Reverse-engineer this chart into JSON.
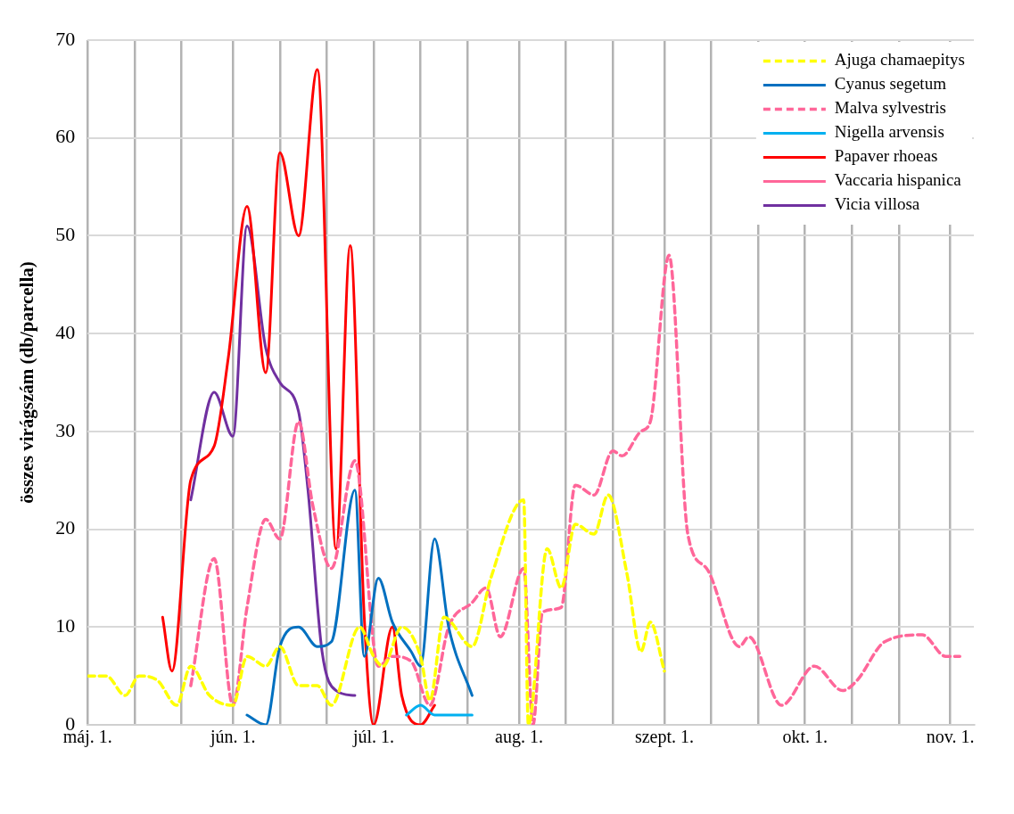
{
  "chart_data": {
    "type": "line",
    "ylabel": "összes virágszám (db/parcella)",
    "xlim": [
      "--05-01",
      "--11-06"
    ],
    "xticks": [
      {
        "value": "--05-01",
        "label": "máj. 1."
      },
      {
        "value": "--05-11",
        "label": null
      },
      {
        "value": "--05-21",
        "label": null
      },
      {
        "value": "--06-01",
        "label": "jún. 1."
      },
      {
        "value": "--06-11",
        "label": null
      },
      {
        "value": "--06-21",
        "label": null
      },
      {
        "value": "--07-01",
        "label": "júl. 1."
      },
      {
        "value": "--07-11",
        "label": null
      },
      {
        "value": "--07-21",
        "label": null
      },
      {
        "value": "--08-01",
        "label": "aug. 1."
      },
      {
        "value": "--08-11",
        "label": null
      },
      {
        "value": "--08-21",
        "label": null
      },
      {
        "value": "--09-01",
        "label": "szept. 1."
      },
      {
        "value": "--09-11",
        "label": null
      },
      {
        "value": "--09-21",
        "label": null
      },
      {
        "value": "--10-01",
        "label": "okt. 1."
      },
      {
        "value": "--10-11",
        "label": null
      },
      {
        "value": "--10-21",
        "label": null
      },
      {
        "value": "--11-01",
        "label": "nov. 1."
      }
    ],
    "ylim": [
      0,
      70
    ],
    "yticks": [
      0,
      10,
      20,
      30,
      40,
      50,
      60,
      70
    ],
    "grid": true,
    "legend": "top right",
    "marker": "none",
    "series": [
      {
        "name": "Ajuga chamaepitys",
        "color": "#ffff00",
        "line_style": "dashed",
        "x": [
          "--05-01",
          "--05-05",
          "--05-09",
          "--05-12",
          "--05-16",
          "--05-20",
          "--05-23",
          "--05-27",
          "--06-01",
          "--06-04",
          "--06-08",
          "--06-11",
          "--06-15",
          "--06-19",
          "--06-22",
          "--06-28",
          "--07-01",
          "--07-03",
          "--07-07",
          "--07-11",
          "--07-13",
          "--07-16",
          "--07-22",
          "--07-26",
          "--08-02",
          "--08-03",
          "--08-07",
          "--08-10",
          "--08-13",
          "--08-17",
          "--08-20",
          "--08-24",
          "--08-27",
          "--08-29",
          "--09-01"
        ],
        "values": [
          5,
          5,
          3,
          5,
          4.5,
          2,
          6,
          3,
          2,
          7,
          6,
          8,
          4,
          4,
          2,
          10,
          7,
          6,
          10,
          7,
          2.5,
          11,
          8,
          15,
          23,
          0,
          18,
          14,
          20.5,
          19.5,
          23.5,
          15.5,
          7.5,
          10.5,
          5.5
        ]
      },
      {
        "name": "Cyanus segetum",
        "color": "#0070c0",
        "line_style": "solid",
        "x": [
          "--06-04",
          "--06-08",
          "--06-11",
          "--06-15",
          "--06-19",
          "--06-22",
          "--06-27",
          "--06-29",
          "--07-02",
          "--07-05",
          "--07-09",
          "--07-11",
          "--07-14",
          "--07-17",
          "--07-22"
        ],
        "values": [
          1,
          0,
          8,
          10,
          8,
          8.5,
          24,
          7,
          15,
          10.5,
          7.5,
          6,
          19,
          10,
          3
        ]
      },
      {
        "name": "Malva sylvestris",
        "color": "#ff6699",
        "line_style": "dashed",
        "x": [
          "--05-23",
          "--05-28",
          "--06-01",
          "--06-04",
          "--06-08",
          "--06-11",
          "--06-15",
          "--06-18",
          "--06-22",
          "--06-27",
          "--07-02",
          "--07-05",
          "--07-09",
          "--07-13",
          "--07-17",
          "--07-22",
          "--07-25",
          "--07-28",
          "--08-02",
          "--08-04",
          "--08-06",
          "--08-10",
          "--08-13",
          "--08-17",
          "--08-21",
          "--08-23",
          "--08-27",
          "--08-29",
          "--09-02",
          "--09-06",
          "--09-10",
          "--09-17",
          "--09-19",
          "--09-26",
          "--10-03",
          "--10-09",
          "--10-12",
          "--10-18",
          "--10-26",
          "--10-31",
          "--11-03"
        ],
        "values": [
          4,
          17,
          2,
          12,
          21,
          19,
          31,
          22.5,
          16,
          27,
          6,
          7,
          6.5,
          2,
          10,
          12.5,
          14,
          9,
          16,
          0,
          11.5,
          12,
          24.5,
          23.5,
          28,
          27.5,
          30,
          31,
          48,
          19.5,
          16,
          8,
          9,
          2,
          6,
          3.5,
          4.5,
          8.5,
          9.2,
          7,
          7
        ]
      },
      {
        "name": "Nigella arvensis",
        "color": "#00b0f0",
        "line_style": "solid",
        "x": [
          "--07-08",
          "--07-11",
          "--07-14",
          "--07-22"
        ],
        "values": [
          1,
          2,
          1,
          1
        ]
      },
      {
        "name": "Papaver rhoeas",
        "color": "#ff0000",
        "line_style": "solid",
        "x": [
          "--05-17",
          "--05-19",
          "--05-23",
          "--05-28",
          "--05-31",
          "--06-04",
          "--06-08",
          "--06-11",
          "--06-15",
          "--06-19",
          "--06-23",
          "--06-26",
          "--06-29",
          "--07-01",
          "--07-05",
          "--07-07",
          "--07-11",
          "--07-14"
        ],
        "values": [
          11,
          5.5,
          25,
          28.5,
          37.5,
          53,
          36,
          58.5,
          50,
          67,
          18,
          49,
          11,
          0,
          10,
          3,
          0,
          2
        ]
      },
      {
        "name": "Vaccaria hispanica",
        "color": "#ff6699",
        "line_style": "solid"
      },
      {
        "name": "Vicia villosa",
        "color": "#7030a0",
        "line_style": "solid",
        "x": [
          "--05-23",
          "--05-28",
          "--06-01",
          "--06-04",
          "--06-08",
          "--06-11",
          "--06-15",
          "--06-17",
          "--06-20",
          "--06-23",
          "--06-27"
        ],
        "values": [
          23,
          34,
          29.5,
          51,
          38.5,
          35,
          32,
          24,
          7.5,
          3.5,
          3
        ]
      }
    ]
  }
}
